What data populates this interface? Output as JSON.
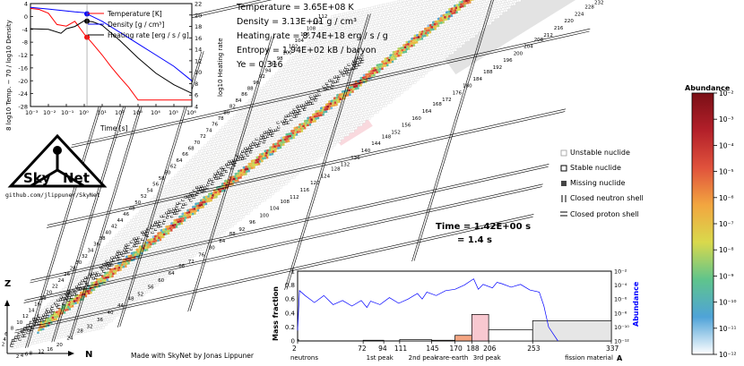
{
  "conditions": {
    "temperature": "Temperature = 3.65E+08 K",
    "density": "Density = 3.13E+01 g / cm³",
    "heating_rate": "Heating rate = 8.74E+18 erg / s / g",
    "entropy": "Entropy = 1.94E+02 kB / baryon",
    "ye": "Ye = 0.316"
  },
  "time": {
    "line1": "Time = 1.42E+00 s",
    "line2": "= 1.4 s"
  },
  "logo": {
    "word_left": "Sky",
    "word_right": "Net",
    "url": "github.com/jlippuner/SkyNet"
  },
  "credit": "Made with SkyNet by Jonas Lippuner",
  "chart_axes": {
    "z_label": "Z",
    "n_label": "N"
  },
  "nuclide_legend": {
    "items": [
      "Unstable nuclide",
      "Stable nuclide",
      "Missing nuclide",
      "Closed neutron shell",
      "Closed proton shell"
    ]
  },
  "colorbar": {
    "title": "Abundance",
    "ticks": [
      "10⁻²",
      "10⁻³",
      "10⁻⁴",
      "10⁻⁵",
      "10⁻⁶",
      "10⁻⁷",
      "10⁻⁸",
      "10⁻⁹",
      "10⁻¹⁰",
      "10⁻¹¹",
      "10⁻¹²"
    ],
    "colors": [
      "#ffffff",
      "#4fa3d8",
      "#5fc48c",
      "#d9d94c",
      "#f2a640",
      "#e0523c",
      "#b3202a",
      "#7a0f16"
    ]
  },
  "chart_data": [
    {
      "type": "line",
      "xlabel": "Time [s]",
      "ylabel_left": "8 log10 Temp. − 70  /  log10 Density",
      "ylabel_right": "log10 Heating rate",
      "xlim": [
        0.001,
        1000000
      ],
      "xscale": "log",
      "ylim_left": [
        -28,
        4
      ],
      "ylim_right": [
        4,
        22
      ],
      "xticks": [
        "10⁻³",
        "10⁻²",
        "10⁻¹",
        "10⁰",
        "10¹",
        "10²",
        "10³",
        "10⁴",
        "10⁵",
        "10⁶"
      ],
      "yticks_left": [
        "4",
        "0",
        "-4",
        "-8",
        "-12",
        "-16",
        "-20",
        "-24",
        "-28"
      ],
      "yticks_right": [
        "22",
        "20",
        "18",
        "16",
        "14",
        "12",
        "10",
        "8",
        "6",
        "4"
      ],
      "current_time": 1.42,
      "series": [
        {
          "name": "Temperature [K]",
          "color": "#ff0000",
          "axis": "left",
          "x": [
            0.001,
            0.003,
            0.01,
            0.03,
            0.1,
            0.3,
            1,
            3,
            10,
            30,
            100,
            300,
            1000,
            1000000
          ],
          "y": [
            2.5,
            2.2,
            1.0,
            -2.5,
            -3.0,
            -1.5,
            -5.5,
            -8.5,
            -12,
            -15.5,
            -19,
            -22,
            -26,
            -26
          ]
        },
        {
          "name": "Density [g / cm³]",
          "color": "#0000ff",
          "axis": "left",
          "x": [
            0.001,
            0.01,
            0.1,
            0.3,
            1,
            10,
            100,
            1000,
            10000,
            100000,
            1000000
          ],
          "y": [
            2.8,
            2.3,
            1.7,
            1.4,
            1.2,
            -1.5,
            -5,
            -8.5,
            -12,
            -15.5,
            -20
          ]
        },
        {
          "name": "Heating rate [erg / s / g]",
          "color": "#000000",
          "axis": "right",
          "x": [
            0.001,
            0.01,
            0.05,
            0.1,
            0.3,
            1,
            3,
            10,
            100,
            1000,
            10000,
            100000,
            1000000
          ],
          "y": [
            17.6,
            17.5,
            16.8,
            17.6,
            18.0,
            19.0,
            18.8,
            18.2,
            15.5,
            12.5,
            9.8,
            7.8,
            6.3
          ]
        }
      ]
    },
    {
      "type": "bar",
      "xlabel": "A",
      "ylabel_left": "Mass fraction",
      "ylabel_right": "Abundance",
      "xticks": [
        "2",
        "72",
        "94",
        "111",
        "145",
        "170",
        "188",
        "206",
        "253",
        "337"
      ],
      "yticks_left": [
        "1",
        "0.8",
        "0.6",
        "0.4",
        "0.2",
        "0"
      ],
      "yticks_right": [
        "10⁻²",
        "10⁻⁴",
        "10⁻⁶",
        "10⁻⁸",
        "10⁻¹⁰",
        "10⁻¹²"
      ],
      "region_labels": [
        "neutrons",
        "1st peak",
        "2nd peak",
        "rare-earth",
        "3rd peak",
        "fission material"
      ],
      "bars": [
        {
          "label": "neutrons",
          "a_from": 2,
          "a_to": 3,
          "value": 0.02,
          "color": "#9ecae1"
        },
        {
          "label": "1st peak",
          "a_from": 72,
          "a_to": 94,
          "value": 0.01,
          "color": "#ffffff"
        },
        {
          "label": "",
          "a_from": 111,
          "a_to": 145,
          "value": 0.02,
          "color": "#ffffff"
        },
        {
          "label": "2nd peak",
          "a_from": 145,
          "a_to": 170,
          "value": 0.01,
          "color": "#fbe3c8"
        },
        {
          "label": "rare-earth",
          "a_from": 170,
          "a_to": 188,
          "value": 0.08,
          "color": "#f4a582"
        },
        {
          "label": "3rd peak",
          "a_from": 188,
          "a_to": 206,
          "value": 0.38,
          "color": "#f8c8d0"
        },
        {
          "label": "",
          "a_from": 206,
          "a_to": 253,
          "value": 0.16,
          "color": "#ffffff"
        },
        {
          "label": "fission material",
          "a_from": 253,
          "a_to": 337,
          "value": 0.29,
          "color": "#e6e6e6"
        }
      ],
      "abundance_series": {
        "name": "Abundance",
        "color": "#0000ff",
        "a": [
          2,
          4,
          10,
          20,
          30,
          40,
          50,
          60,
          70,
          76,
          80,
          90,
          100,
          110,
          120,
          130,
          135,
          140,
          150,
          160,
          170,
          180,
          190,
          195,
          200,
          210,
          215,
          220,
          230,
          240,
          250,
          260,
          265,
          270,
          280
        ],
        "log10_y": [
          -10.5,
          -4.8,
          -5.5,
          -6.5,
          -5.5,
          -6.8,
          -6.2,
          -7.0,
          -6.2,
          -7.2,
          -6.3,
          -6.8,
          -5.8,
          -6.6,
          -6.0,
          -5.2,
          -6.0,
          -5.0,
          -5.5,
          -4.8,
          -4.6,
          -4.0,
          -3.1,
          -4.6,
          -3.9,
          -4.4,
          -3.6,
          -3.8,
          -4.3,
          -3.9,
          -4.7,
          -5.0,
          -7.0,
          -10.0,
          -12.0
        ]
      }
    },
    {
      "type": "heatmap",
      "xlabel": "N",
      "ylabel": "Z",
      "n_labels": [
        "2",
        "4",
        "6",
        "8",
        "12",
        "16",
        "20",
        "24",
        "28",
        "32",
        "36",
        "40",
        "44",
        "48",
        "52",
        "56",
        "60",
        "64",
        "68",
        "72",
        "76",
        "80",
        "84",
        "88",
        "92",
        "96",
        "100",
        "104",
        "108",
        "112",
        "116",
        "120",
        "124",
        "128",
        "132",
        "136",
        "140",
        "144",
        "148",
        "152",
        "156",
        "160",
        "164",
        "168",
        "172",
        "176",
        "180",
        "184",
        "188",
        "192",
        "196",
        "200",
        "204",
        "208",
        "212",
        "216",
        "220",
        "224",
        "228",
        "232"
      ],
      "z_labels": [
        "2",
        "4",
        "6",
        "8",
        "10",
        "12",
        "14",
        "16",
        "18",
        "20",
        "22",
        "24",
        "26",
        "28",
        "30",
        "32",
        "34",
        "36",
        "38",
        "40",
        "42",
        "44",
        "46",
        "48",
        "50",
        "52",
        "54",
        "56",
        "58",
        "60",
        "62",
        "64",
        "66",
        "68",
        "70",
        "72",
        "74",
        "76",
        "78",
        "80",
        "82",
        "84",
        "86",
        "88",
        "90",
        "92",
        "94",
        "96",
        "98",
        "100",
        "102",
        "104",
        "106",
        "108",
        "110",
        "112"
      ],
      "closed_neutron_shells": [
        "8",
        "20",
        "28",
        "50",
        "82",
        "126",
        "184"
      ],
      "closed_proton_shells": [
        "8",
        "20",
        "28",
        "50",
        "82",
        "126"
      ],
      "color_scale": "log10 abundance from 1e-12 (white) to 1e-2 (dark red)"
    }
  ]
}
